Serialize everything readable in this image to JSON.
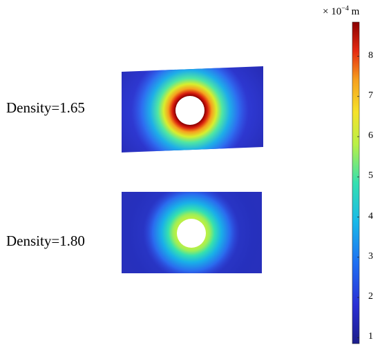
{
  "panels": [
    {
      "label": "Density=1.65"
    },
    {
      "label": "Density=1.80"
    }
  ],
  "colorbar": {
    "unit_prefix": "× 10",
    "unit_exponent": "−4",
    "unit_suffix": " m",
    "min": 0.85,
    "max": 8.85,
    "ticks": [
      "1",
      "2",
      "3",
      "4",
      "5",
      "6",
      "7",
      "8"
    ],
    "colormap": "jet"
  },
  "colors": {
    "low": "#1c1d8a",
    "high": "#8b0000"
  }
}
